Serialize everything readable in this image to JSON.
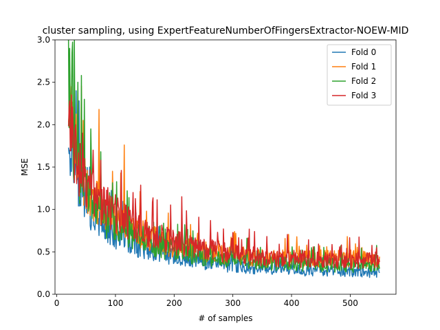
{
  "chart_data": {
    "type": "line",
    "title": "cluster sampling, using ExpertFeatureNumberOfFingersExtractor-NOEW-MID",
    "xlabel": "# of samples",
    "ylabel": "MSE",
    "xlim": [
      -3,
      578
    ],
    "ylim": [
      0,
      3.0
    ],
    "x_ticks": [
      0,
      100,
      200,
      300,
      400,
      500
    ],
    "y_ticks": [
      0.0,
      0.5,
      1.0,
      1.5,
      2.0,
      2.5,
      3.0
    ],
    "legend_position": "top-right",
    "grid": false,
    "x_start": 20,
    "x_end": 550,
    "series": [
      {
        "name": "Fold 0",
        "color": "#1f77b4",
        "anchors": [
          [
            20,
            1.95
          ],
          [
            30,
            1.55
          ],
          [
            40,
            1.3
          ],
          [
            50,
            1.1
          ],
          [
            60,
            0.95
          ],
          [
            80,
            0.8
          ],
          [
            100,
            0.7
          ],
          [
            130,
            0.6
          ],
          [
            160,
            0.52
          ],
          [
            200,
            0.44
          ],
          [
            250,
            0.38
          ],
          [
            300,
            0.33
          ],
          [
            350,
            0.31
          ],
          [
            400,
            0.29
          ],
          [
            450,
            0.28
          ],
          [
            500,
            0.27
          ],
          [
            550,
            0.26
          ]
        ],
        "spikes": [
          [
            22,
            1.7
          ],
          [
            24,
            1.6
          ],
          [
            33,
            2.4
          ],
          [
            38,
            2.28
          ],
          [
            46,
            1.7
          ],
          [
            56,
            1.5
          ],
          [
            84,
            1.1
          ],
          [
            110,
            0.9
          ],
          [
            143,
            0.78
          ],
          [
            215,
            0.55
          ]
        ]
      },
      {
        "name": "Fold 1",
        "color": "#ff7f0e",
        "anchors": [
          [
            20,
            2.2
          ],
          [
            30,
            1.8
          ],
          [
            40,
            1.5
          ],
          [
            50,
            1.3
          ],
          [
            60,
            1.15
          ],
          [
            80,
            1.0
          ],
          [
            100,
            0.9
          ],
          [
            130,
            0.78
          ],
          [
            160,
            0.66
          ],
          [
            200,
            0.57
          ],
          [
            250,
            0.5
          ],
          [
            300,
            0.46
          ],
          [
            350,
            0.43
          ],
          [
            400,
            0.42
          ],
          [
            450,
            0.42
          ],
          [
            500,
            0.42
          ],
          [
            550,
            0.41
          ]
        ],
        "spikes": [
          [
            22,
            2.6
          ],
          [
            25,
            2.45
          ],
          [
            36,
            2.3
          ],
          [
            45,
            2.05
          ],
          [
            72,
            2.18
          ],
          [
            95,
            1.45
          ],
          [
            115,
            1.76
          ],
          [
            153,
            0.98
          ],
          [
            240,
            0.72
          ],
          [
            305,
            0.72
          ],
          [
            460,
            0.56
          ],
          [
            520,
            0.55
          ]
        ]
      },
      {
        "name": "Fold 2",
        "color": "#2ca02c",
        "anchors": [
          [
            20,
            2.1
          ],
          [
            30,
            1.65
          ],
          [
            40,
            1.4
          ],
          [
            50,
            1.2
          ],
          [
            60,
            1.05
          ],
          [
            80,
            0.9
          ],
          [
            100,
            0.8
          ],
          [
            130,
            0.7
          ],
          [
            160,
            0.6
          ],
          [
            200,
            0.51
          ],
          [
            250,
            0.44
          ],
          [
            300,
            0.4
          ],
          [
            350,
            0.38
          ],
          [
            400,
            0.36
          ],
          [
            450,
            0.35
          ],
          [
            500,
            0.34
          ],
          [
            550,
            0.34
          ]
        ],
        "spikes": [
          [
            20,
            3.0
          ],
          [
            22,
            2.9
          ],
          [
            26,
            2.85
          ],
          [
            30,
            3.0
          ],
          [
            36,
            2.5
          ],
          [
            42,
            2.58
          ],
          [
            47,
            2.3
          ],
          [
            58,
            1.95
          ],
          [
            75,
            1.68
          ],
          [
            120,
            1.22
          ],
          [
            165,
            0.85
          ],
          [
            210,
            0.68
          ]
        ]
      },
      {
        "name": "Fold 3",
        "color": "#d62728",
        "anchors": [
          [
            20,
            2.0
          ],
          [
            30,
            1.7
          ],
          [
            40,
            1.45
          ],
          [
            50,
            1.3
          ],
          [
            60,
            1.18
          ],
          [
            80,
            1.05
          ],
          [
            100,
            0.95
          ],
          [
            130,
            0.83
          ],
          [
            160,
            0.72
          ],
          [
            200,
            0.62
          ],
          [
            250,
            0.53
          ],
          [
            300,
            0.48
          ],
          [
            350,
            0.44
          ],
          [
            400,
            0.42
          ],
          [
            450,
            0.41
          ],
          [
            500,
            0.4
          ],
          [
            550,
            0.4
          ]
        ],
        "spikes": [
          [
            21,
            2.2
          ],
          [
            25,
            2.35
          ],
          [
            32,
            2.0
          ],
          [
            44,
            1.9
          ],
          [
            62,
            1.7
          ],
          [
            75,
            1.58
          ],
          [
            110,
            1.46
          ],
          [
            130,
            1.2
          ],
          [
            213,
            1.15
          ],
          [
            262,
            0.87
          ],
          [
            337,
            0.74
          ],
          [
            545,
            0.55
          ]
        ]
      }
    ]
  }
}
